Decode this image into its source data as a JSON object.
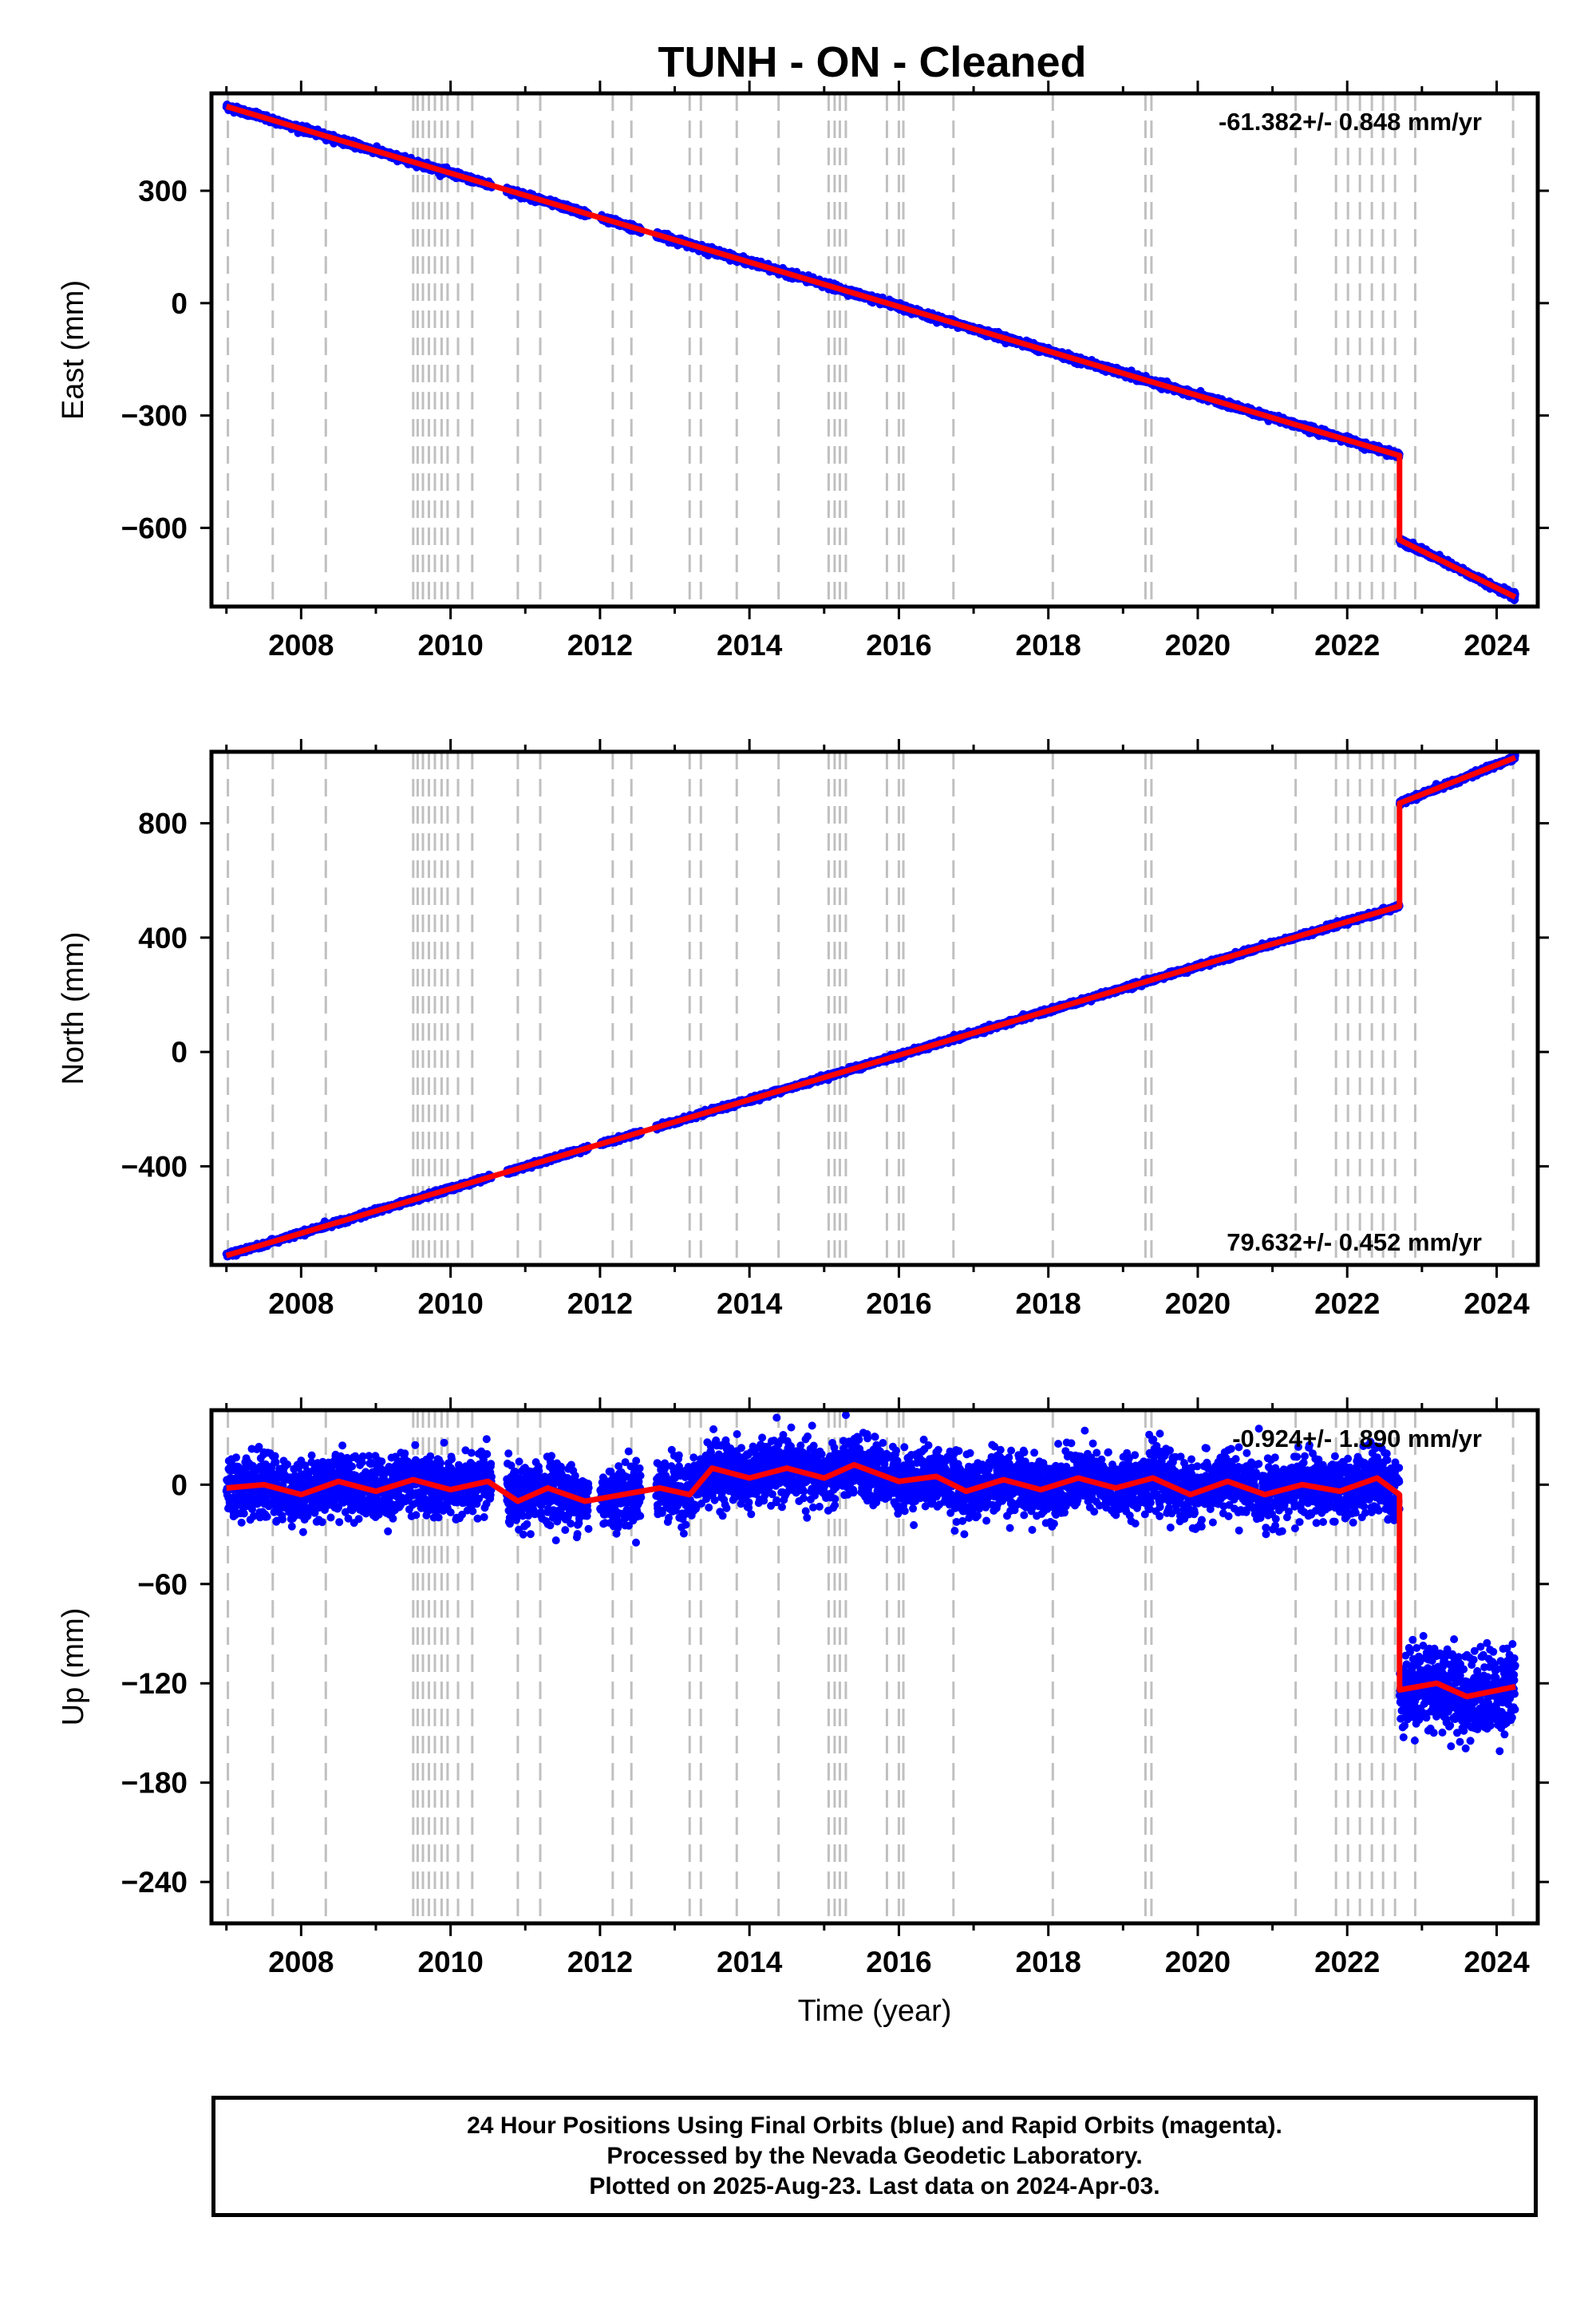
{
  "title": "TUNH  - ON - Cleaned",
  "colors": {
    "data": "#0000ff",
    "model": "#ff0000",
    "event_lines": "#c0c0c0",
    "frame": "#000000"
  },
  "footer": {
    "line1": "24 Hour Positions Using Final Orbits (blue) and Rapid Orbits (magenta).",
    "line2": "Processed by the Nevada Geodetic Laboratory.",
    "line3": "Plotted on 2025-Aug-23. Last data on 2024-Apr-03."
  },
  "chart_data": [
    {
      "type": "scatter",
      "name": "east",
      "ylabel": "East (mm)",
      "xlabel": "",
      "rate_label": "-61.382+/- 0.848 mm/yr",
      "xlim": [
        2006.8,
        2024.55
      ],
      "ylim": [
        -810,
        560
      ],
      "yticks": [
        300,
        0,
        -300,
        -600
      ],
      "ytick_labels": [
        "300",
        "0",
        "−300",
        "−600"
      ],
      "xticks": [
        2008,
        2010,
        2012,
        2014,
        2016,
        2018,
        2020,
        2022,
        2024
      ],
      "noise_mm": 4,
      "offsets": [
        {
          "t": 2022.7,
          "jump": -225
        }
      ],
      "model": [
        [
          2007.0,
          525
        ],
        [
          2022.7,
          -407
        ],
        [
          2022.7,
          -632
        ],
        [
          2024.25,
          -785
        ]
      ]
    },
    {
      "type": "scatter",
      "name": "north",
      "ylabel": "North (mm)",
      "xlabel": "",
      "rate_label": "79.632+/- 0.452 mm/yr",
      "xlim": [
        2006.8,
        2024.55
      ],
      "ylim": [
        -745,
        1050
      ],
      "yticks": [
        800,
        400,
        0,
        -400
      ],
      "ytick_labels": [
        "800",
        "400",
        "0",
        "−400"
      ],
      "xticks": [
        2008,
        2010,
        2012,
        2014,
        2016,
        2018,
        2020,
        2022,
        2024
      ],
      "noise_mm": 4,
      "offsets": [
        {
          "t": 2022.7,
          "jump": 360
        }
      ],
      "model": [
        [
          2007.0,
          -712
        ],
        [
          2022.7,
          510
        ],
        [
          2022.7,
          870
        ],
        [
          2024.25,
          1030
        ]
      ]
    },
    {
      "type": "scatter",
      "name": "up",
      "ylabel": "Up (mm)",
      "xlabel": "Time (year)",
      "rate_label": "-0.924+/- 1.890 mm/yr",
      "xlim": [
        2006.8,
        2024.55
      ],
      "ylim": [
        -265,
        45
      ],
      "yticks": [
        0,
        -60,
        -120,
        -180,
        -240
      ],
      "ytick_labels": [
        "0",
        "−60",
        "−120",
        "−180",
        "−240"
      ],
      "xticks": [
        2008,
        2010,
        2012,
        2014,
        2016,
        2018,
        2020,
        2022,
        2024
      ],
      "noise_mm": 9,
      "offsets": [
        {
          "t": 2022.7,
          "jump": -120
        }
      ],
      "model": [
        [
          2007.0,
          -2
        ],
        [
          2007.5,
          0
        ],
        [
          2008.0,
          -6
        ],
        [
          2008.5,
          2
        ],
        [
          2009.0,
          -4
        ],
        [
          2009.5,
          3
        ],
        [
          2010.0,
          -3
        ],
        [
          2010.5,
          2
        ],
        [
          2010.9,
          -10
        ],
        [
          2011.3,
          -2
        ],
        [
          2011.8,
          -10
        ],
        [
          2012.3,
          -6
        ],
        [
          2012.8,
          -2
        ],
        [
          2013.2,
          -6
        ],
        [
          2013.5,
          10
        ],
        [
          2014.0,
          4
        ],
        [
          2014.5,
          10
        ],
        [
          2015.0,
          4
        ],
        [
          2015.4,
          12
        ],
        [
          2016.0,
          2
        ],
        [
          2016.5,
          5
        ],
        [
          2016.9,
          -4
        ],
        [
          2017.4,
          3
        ],
        [
          2017.9,
          -3
        ],
        [
          2018.4,
          4
        ],
        [
          2018.9,
          -2
        ],
        [
          2019.4,
          4
        ],
        [
          2019.9,
          -6
        ],
        [
          2020.4,
          2
        ],
        [
          2020.9,
          -6
        ],
        [
          2021.4,
          0
        ],
        [
          2021.9,
          -4
        ],
        [
          2022.4,
          4
        ],
        [
          2022.7,
          -6
        ],
        [
          2022.7,
          -124
        ],
        [
          2023.2,
          -120
        ],
        [
          2023.6,
          -128
        ],
        [
          2024.25,
          -122
        ]
      ]
    }
  ],
  "event_lines_years": [
    2007.02,
    2007.62,
    2008.33,
    2009.5,
    2009.56,
    2009.63,
    2009.71,
    2009.79,
    2009.88,
    2009.96,
    2010.1,
    2010.29,
    2010.9,
    2011.2,
    2012.17,
    2012.42,
    2013.2,
    2013.35,
    2013.83,
    2014.39,
    2015.06,
    2015.14,
    2015.21,
    2015.29,
    2015.84,
    2016.0,
    2016.06,
    2016.73,
    2018.06,
    2019.3,
    2019.38,
    2021.31,
    2021.85,
    2022.01,
    2022.17,
    2022.33,
    2022.48,
    2022.64,
    2022.91,
    2024.22
  ]
}
